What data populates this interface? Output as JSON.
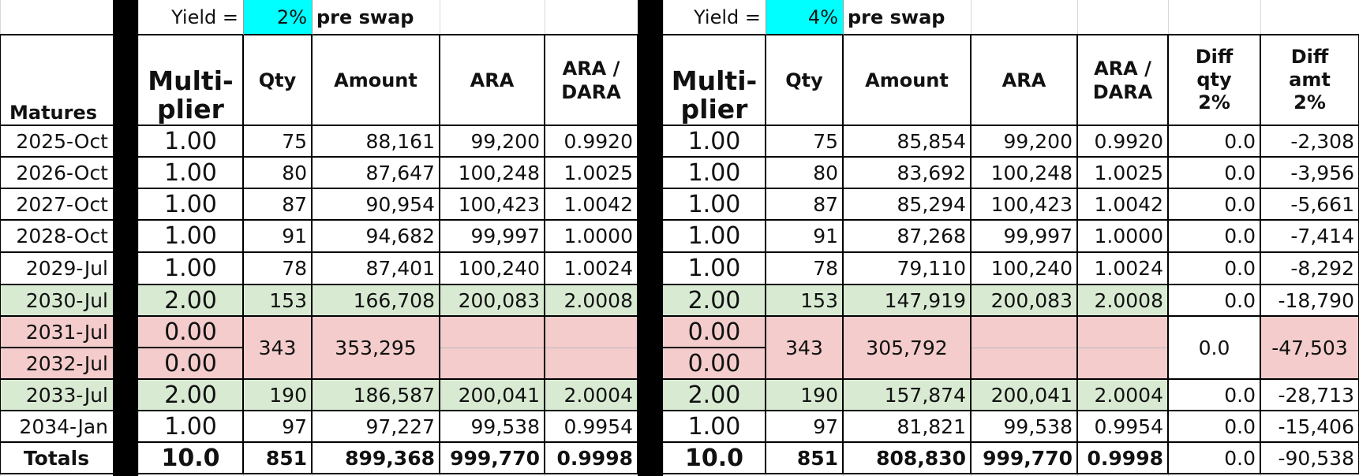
{
  "labels": {
    "yield": "Yield =",
    "pre_swap": "pre swap",
    "matures": "Matures",
    "multiplier": "Multi-\nplier",
    "qty": "Qty",
    "amount": "Amount",
    "ara": "ARA",
    "ara_dara": "ARA /\nDARA",
    "diff_qty": "Diff\nqty\n2%",
    "diff_amt": "Diff\namt\n2%"
  },
  "yield_left": "2%",
  "yield_right": "4%",
  "colors": {
    "yield_cell": "#00ffff",
    "green_row": "#d9ead3",
    "red_row": "#f4cccc",
    "separator": "#000000"
  },
  "rows": [
    {
      "matures": "2025-Oct",
      "mult_l": "1.00",
      "qty_l": "75",
      "amt_l": "88,161",
      "ara_l": "99,200",
      "ratio_l": "0.9920",
      "mult_r": "1.00",
      "qty_r": "75",
      "amt_r": "85,854",
      "ara_r": "99,200",
      "ratio_r": "0.9920",
      "diff_qty": "0.0",
      "diff_amt": "-2,308",
      "style": "plain"
    },
    {
      "matures": "2026-Oct",
      "mult_l": "1.00",
      "qty_l": "80",
      "amt_l": "87,647",
      "ara_l": "100,248",
      "ratio_l": "1.0025",
      "mult_r": "1.00",
      "qty_r": "80",
      "amt_r": "83,692",
      "ara_r": "100,248",
      "ratio_r": "1.0025",
      "diff_qty": "0.0",
      "diff_amt": "-3,956",
      "style": "plain"
    },
    {
      "matures": "2027-Oct",
      "mult_l": "1.00",
      "qty_l": "87",
      "amt_l": "90,954",
      "ara_l": "100,423",
      "ratio_l": "1.0042",
      "mult_r": "1.00",
      "qty_r": "87",
      "amt_r": "85,294",
      "ara_r": "100,423",
      "ratio_r": "1.0042",
      "diff_qty": "0.0",
      "diff_amt": "-5,661",
      "style": "plain"
    },
    {
      "matures": "2028-Oct",
      "mult_l": "1.00",
      "qty_l": "91",
      "amt_l": "94,682",
      "ara_l": "99,997",
      "ratio_l": "1.0000",
      "mult_r": "1.00",
      "qty_r": "91",
      "amt_r": "87,268",
      "ara_r": "99,997",
      "ratio_r": "1.0000",
      "diff_qty": "0.0",
      "diff_amt": "-7,414",
      "style": "plain"
    },
    {
      "matures": "2029-Jul",
      "mult_l": "1.00",
      "qty_l": "78",
      "amt_l": "87,401",
      "ara_l": "100,240",
      "ratio_l": "1.0024",
      "mult_r": "1.00",
      "qty_r": "78",
      "amt_r": "79,110",
      "ara_r": "100,240",
      "ratio_r": "1.0024",
      "diff_qty": "0.0",
      "diff_amt": "-8,292",
      "style": "plain"
    },
    {
      "matures": "2030-Jul",
      "mult_l": "2.00",
      "qty_l": "153",
      "amt_l": "166,708",
      "ara_l": "200,083",
      "ratio_l": "2.0008",
      "mult_r": "2.00",
      "qty_r": "153",
      "amt_r": "147,919",
      "ara_r": "200,083",
      "ratio_r": "2.0008",
      "diff_qty": "0.0",
      "diff_amt": "-18,790",
      "style": "green"
    }
  ],
  "merged": {
    "matures_a": "2031-Jul",
    "matures_b": "2032-Jul",
    "mult_l_a": "0.00",
    "mult_l_b": "0.00",
    "qty_l": "343",
    "amt_l": "353,295",
    "mult_r_a": "0.00",
    "mult_r_b": "0.00",
    "qty_r": "343",
    "amt_r": "305,792",
    "diff_qty": "0.0",
    "diff_amt": "-47,503"
  },
  "rows_after": [
    {
      "matures": "2033-Jul",
      "mult_l": "2.00",
      "qty_l": "190",
      "amt_l": "186,587",
      "ara_l": "200,041",
      "ratio_l": "2.0004",
      "mult_r": "2.00",
      "qty_r": "190",
      "amt_r": "157,874",
      "ara_r": "200,041",
      "ratio_r": "2.0004",
      "diff_qty": "0.0",
      "diff_amt": "-28,713",
      "style": "green"
    },
    {
      "matures": "2034-Jan",
      "mult_l": "1.00",
      "qty_l": "97",
      "amt_l": "97,227",
      "ara_l": "99,538",
      "ratio_l": "0.9954",
      "mult_r": "1.00",
      "qty_r": "97",
      "amt_r": "81,821",
      "ara_r": "99,538",
      "ratio_r": "0.9954",
      "diff_qty": "0.0",
      "diff_amt": "-15,406",
      "style": "plain"
    }
  ],
  "totals": {
    "label": "Totals",
    "mult_l": "10.0",
    "qty_l": "851",
    "amt_l": "899,368",
    "ara_l": "999,770",
    "ratio_l": "0.9998",
    "mult_r": "10.0",
    "qty_r": "851",
    "amt_r": "808,830",
    "ara_r": "999,770",
    "ratio_r": "0.9998",
    "diff_qty": "0.0",
    "diff_amt": "-90,538"
  }
}
